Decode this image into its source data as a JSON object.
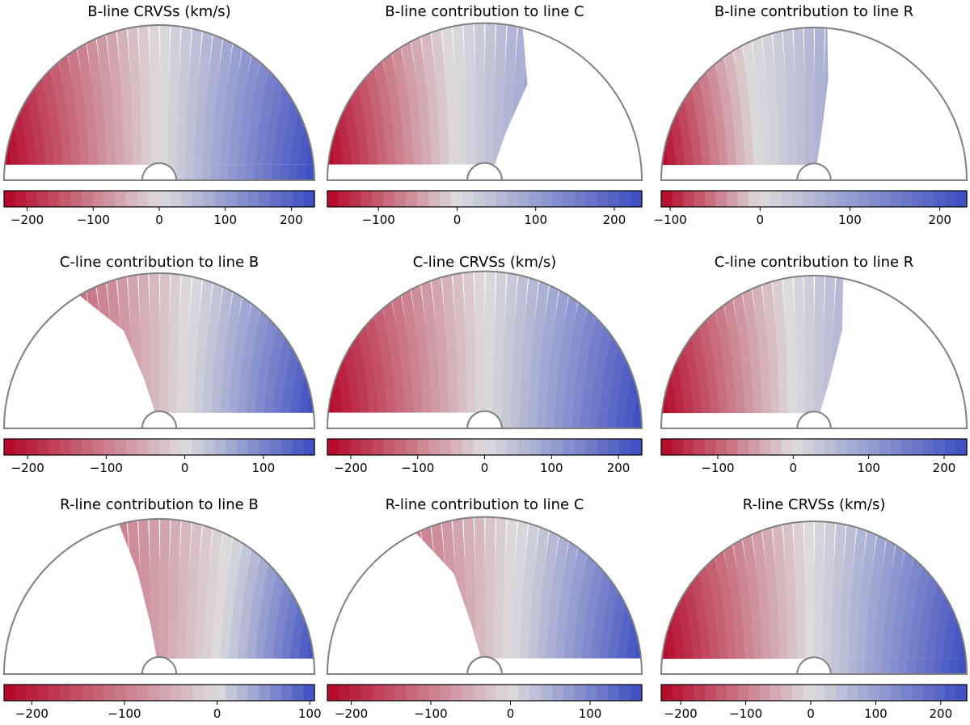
{
  "figure": {
    "title": ""
  },
  "chart_data": [
    {
      "type": "heatmap",
      "title": "B-line CRVSs (km/s)",
      "vmin": -235,
      "vmax": 235,
      "ticks": [
        -200,
        -100,
        0,
        100,
        200
      ],
      "tick_labels": [
        "−200",
        "−100",
        "0",
        "100",
        "200"
      ],
      "mask": {
        "kind": "full",
        "angles_deg": [],
        "bottom_gap": 0.1
      },
      "colors": {
        "cold": "#3b4cc0",
        "neutral": "#dddcdc",
        "warm": "#b40426"
      }
    },
    {
      "type": "heatmap",
      "title": "B-line contribution to line C",
      "vmin": -165,
      "vmax": 235,
      "ticks": [
        -100,
        0,
        100,
        200
      ],
      "tick_labels": [
        "−100",
        "0",
        "100",
        "200"
      ],
      "mask": {
        "kind": "keep-left",
        "angles_deg": [
          76,
          66,
          66,
          57
        ],
        "bottom_gap": 0.1
      },
      "colors": {
        "cold": "#3b4cc0",
        "neutral": "#dddcdc",
        "warm": "#b40426"
      }
    },
    {
      "type": "heatmap",
      "title": "B-line contribution to line R",
      "vmin": -110,
      "vmax": 230,
      "ticks": [
        -100,
        0,
        100,
        200
      ],
      "tick_labels": [
        "−100",
        "0",
        "100",
        "200"
      ],
      "mask": {
        "kind": "keep-left",
        "angles_deg": [
          85,
          82,
          81,
          80
        ],
        "bottom_gap": 0.1
      },
      "colors": {
        "cold": "#3b4cc0",
        "neutral": "#dddcdc",
        "warm": "#b40426"
      }
    },
    {
      "type": "heatmap",
      "title": "C-line contribution to line B",
      "vmin": -230,
      "vmax": 165,
      "ticks": [
        -200,
        -100,
        0,
        100
      ],
      "tick_labels": [
        "−200",
        "−100",
        "0",
        "100"
      ],
      "mask": {
        "kind": "keep-right",
        "angles_deg": [
          59,
          70,
          73,
          75
        ],
        "bottom_gap": 0.1
      },
      "colors": {
        "cold": "#3b4cc0",
        "neutral": "#dddcdc",
        "warm": "#b40426"
      }
    },
    {
      "type": "heatmap",
      "title": "C-line CRVSs (km/s)",
      "vmin": -235,
      "vmax": 235,
      "ticks": [
        -200,
        -100,
        0,
        100,
        200
      ],
      "tick_labels": [
        "−200",
        "−100",
        "0",
        "100",
        "200"
      ],
      "mask": {
        "kind": "full",
        "angles_deg": [],
        "bottom_gap": 0.1
      },
      "colors": {
        "cold": "#3b4cc0",
        "neutral": "#dddcdc",
        "warm": "#b40426"
      }
    },
    {
      "type": "heatmap",
      "title": "C-line contribution to line R",
      "vmin": -175,
      "vmax": 230,
      "ticks": [
        -100,
        0,
        100,
        200
      ],
      "tick_labels": [
        "−100",
        "0",
        "100",
        "200"
      ],
      "mask": {
        "kind": "keep-left",
        "angles_deg": [
          79,
          74,
          72,
          70
        ],
        "bottom_gap": 0.1
      },
      "colors": {
        "cold": "#3b4cc0",
        "neutral": "#dddcdc",
        "warm": "#b40426"
      }
    },
    {
      "type": "heatmap",
      "title": "R-line contribution to line B",
      "vmin": -230,
      "vmax": 105,
      "ticks": [
        -200,
        -100,
        0,
        100
      ],
      "tick_labels": [
        "−200",
        "−100",
        "0",
        "100"
      ],
      "mask": {
        "kind": "keep-right",
        "angles_deg": [
          75,
          78,
          80,
          81
        ],
        "bottom_gap": 0.1
      },
      "colors": {
        "cold": "#3b4cc0",
        "neutral": "#dddcdc",
        "warm": "#b40426"
      }
    },
    {
      "type": "heatmap",
      "title": "R-line contribution to line C",
      "vmin": -230,
      "vmax": 165,
      "ticks": [
        -200,
        -100,
        0,
        100
      ],
      "tick_labels": [
        "−200",
        "−100",
        "0",
        "100"
      ],
      "mask": {
        "kind": "keep-right",
        "angles_deg": [
          64,
          73,
          75,
          77
        ],
        "bottom_gap": 0.1
      },
      "colors": {
        "cold": "#3b4cc0",
        "neutral": "#dddcdc",
        "warm": "#b40426"
      }
    },
    {
      "type": "heatmap",
      "title": "R-line CRVSs (km/s)",
      "vmin": -230,
      "vmax": 240,
      "ticks": [
        -200,
        -100,
        0,
        100,
        200
      ],
      "tick_labels": [
        "−200",
        "−100",
        "0",
        "100",
        "200"
      ],
      "mask": {
        "kind": "full",
        "angles_deg": [],
        "bottom_gap": 0.1
      },
      "colors": {
        "cold": "#3b4cc0",
        "neutral": "#dddcdc",
        "warm": "#b40426"
      }
    }
  ]
}
